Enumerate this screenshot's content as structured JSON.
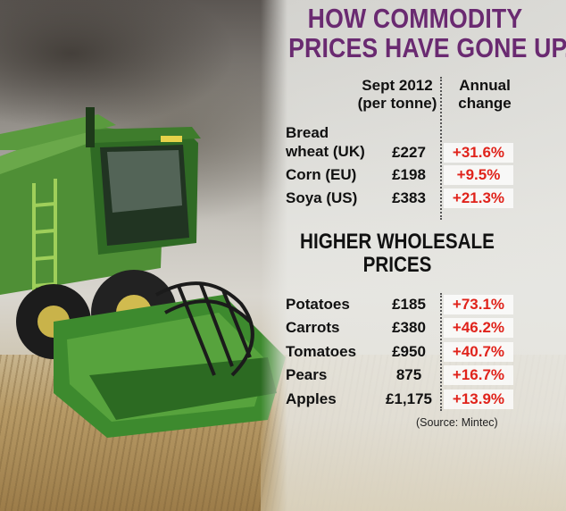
{
  "header": {
    "title_line1": "HOW COMMODITY",
    "title_line2": "PRICES HAVE GONE UP..."
  },
  "columns": {
    "price_line1": "Sept 2012",
    "price_line2": "(per tonne)",
    "change_line1": "Annual",
    "change_line2": "change"
  },
  "commodities": [
    {
      "name_line1": "Bread",
      "name_line2": "wheat (UK)",
      "price": "£227",
      "change": "+31.6%"
    },
    {
      "name": "Corn (EU)",
      "price": "£198",
      "change": "+9.5%"
    },
    {
      "name": "Soya (US)",
      "price": "£383",
      "change": "+21.3%"
    }
  ],
  "wholesale": {
    "heading_line1": "HIGHER WHOLESALE",
    "heading_line2": "PRICES",
    "items": [
      {
        "name": "Potatoes",
        "price": "£185",
        "change": "+73.1%"
      },
      {
        "name": "Carrots",
        "price": "£380",
        "change": "+46.2%"
      },
      {
        "name": "Tomatoes",
        "price": "£950",
        "change": "+40.7%"
      },
      {
        "name": "Pears",
        "price": "875",
        "change": "+16.7%"
      },
      {
        "name": "Apples",
        "price": "£1,175",
        "change": "+13.9%"
      }
    ]
  },
  "source": "(Source: Mintec)",
  "colors": {
    "title": "#6a2a71",
    "change": "#e0231b",
    "combine_green": "#3f8a2f"
  }
}
